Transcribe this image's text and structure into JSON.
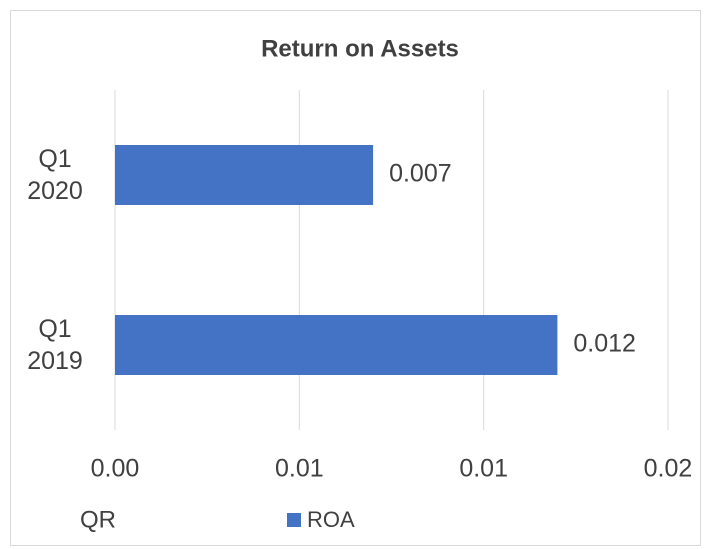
{
  "chart_data": {
    "type": "bar",
    "orientation": "horizontal",
    "title": "Return on Assets",
    "y_label": "QR",
    "categories": [
      "Q1 2019",
      "Q1 2020"
    ],
    "series": [
      {
        "name": "ROA",
        "color": "#4472c4",
        "values": [
          0.012,
          0.007
        ]
      }
    ],
    "xlim": [
      0,
      0.015
    ],
    "xticks": [
      {
        "value": 0,
        "label": "0.00"
      },
      {
        "value": 0.005,
        "label": "0.01"
      },
      {
        "value": 0.01,
        "label": "0.01"
      },
      {
        "value": 0.015,
        "label": "0.02"
      }
    ],
    "grid": true,
    "legend": "bottom"
  }
}
